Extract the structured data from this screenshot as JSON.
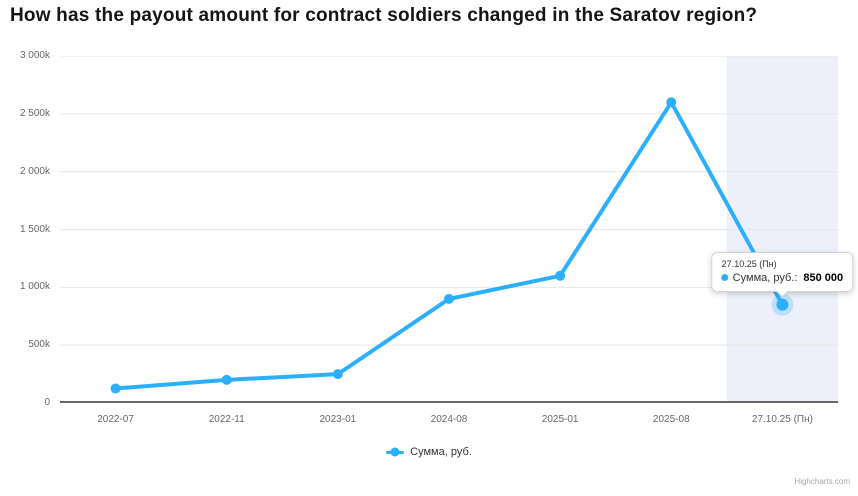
{
  "title": "How has the payout amount for contract soldiers changed in the Saratov region?",
  "chart_data": {
    "type": "line",
    "title": "How has the payout amount for contract soldiers changed in the Saratov region?",
    "categories": [
      "2022-07",
      "2022-11",
      "2023-01",
      "2024-08",
      "2025-01",
      "2025-08",
      "27.10.25 (Пн)"
    ],
    "series": [
      {
        "name": "Сумма, руб.",
        "values": [
          125000,
          200000,
          250000,
          900000,
          1100000,
          2600000,
          850000
        ]
      }
    ],
    "xlabel": "",
    "ylabel": "",
    "ylim": [
      0,
      3000000
    ],
    "ytick_step": 500000,
    "ytick_labels": [
      "0",
      "500k",
      "1 000k",
      "1 500k",
      "2 000k",
      "2 500k",
      "3 000k"
    ],
    "grid": true,
    "legend_position": "bottom-center",
    "plot_band": {
      "start_category_index": 6,
      "color": "#edf0fa"
    },
    "active_point_index": 6,
    "colors": {
      "line": "#2caffe",
      "grid": "#e6e6e6",
      "axis_line": "#666666",
      "labels": "#666666",
      "halo": "rgba(44,175,254,0.25)"
    }
  },
  "tooltip": {
    "header": "27.10.25 (Пн)",
    "series_label": "Сумма, руб.:",
    "value": "850 000"
  },
  "legend": {
    "label": "Сумма, руб."
  },
  "credits": "Highcharts.com"
}
